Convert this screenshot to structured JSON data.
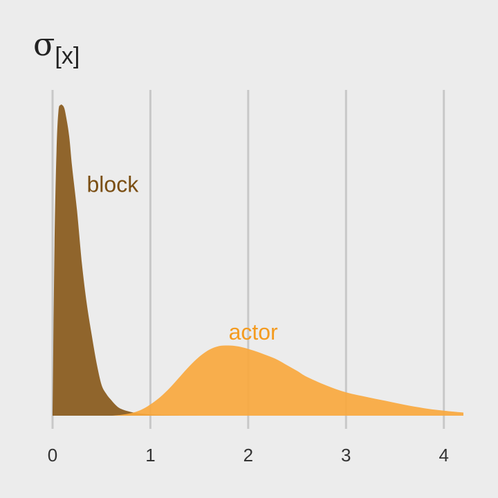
{
  "chart_data": {
    "type": "area",
    "title": "σ",
    "title_subscript": "[x]",
    "xlabel": "",
    "ylabel": "",
    "xlim": [
      0,
      4.2
    ],
    "ylim": [
      0,
      1.0
    ],
    "x_ticks": [
      0,
      1,
      2,
      3,
      4
    ],
    "x_tick_labels": [
      "0",
      "1",
      "2",
      "3",
      "4"
    ],
    "grid": "vertical",
    "legend": "none",
    "background": "#ececec",
    "series": [
      {
        "name": "block",
        "color": "#8b5e22",
        "label_color": "#7a4e12",
        "label_at": [
          0.35,
          0.72
        ],
        "x": [
          0,
          0.02,
          0.04,
          0.06,
          0.08,
          0.1,
          0.12,
          0.14,
          0.17,
          0.2,
          0.25,
          0.3,
          0.35,
          0.4,
          0.45,
          0.5,
          0.55,
          0.6,
          0.65,
          0.7,
          0.8,
          0.9,
          1.0,
          1.1,
          1.3,
          1.6,
          2.0
        ],
        "y": [
          0.0,
          0.55,
          0.85,
          0.98,
          1.0,
          1.0,
          0.99,
          0.96,
          0.9,
          0.8,
          0.66,
          0.49,
          0.36,
          0.26,
          0.17,
          0.1,
          0.07,
          0.05,
          0.033,
          0.022,
          0.012,
          0.007,
          0.004,
          0.0025,
          0.001,
          0.0003,
          0.0
        ]
      },
      {
        "name": "actor",
        "color": "#f8a83e",
        "label_color": "#f49b1f",
        "label_at": [
          1.8,
          0.245
        ],
        "x": [
          0.6,
          0.7,
          0.8,
          0.9,
          1.0,
          1.1,
          1.2,
          1.3,
          1.4,
          1.5,
          1.6,
          1.7,
          1.8,
          1.9,
          2.0,
          2.1,
          2.2,
          2.3,
          2.4,
          2.5,
          2.6,
          2.8,
          3.0,
          3.2,
          3.4,
          3.6,
          3.8,
          4.0,
          4.2
        ],
        "y": [
          0.0,
          0.003,
          0.008,
          0.018,
          0.036,
          0.06,
          0.09,
          0.125,
          0.16,
          0.19,
          0.212,
          0.224,
          0.226,
          0.223,
          0.215,
          0.205,
          0.193,
          0.18,
          0.162,
          0.144,
          0.125,
          0.097,
          0.075,
          0.061,
          0.048,
          0.035,
          0.024,
          0.016,
          0.01
        ]
      }
    ]
  }
}
